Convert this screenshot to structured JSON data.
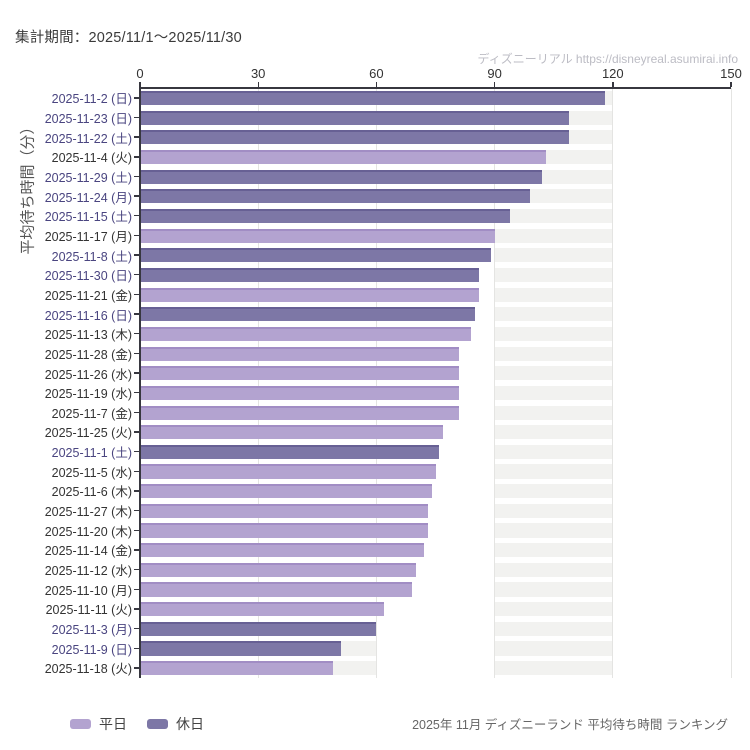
{
  "header": {
    "title": "集計期間：2025/11/1～2025/11/30",
    "watermark": "ディズニーリアル https://disneyreal.asumirai.info"
  },
  "footer": {
    "caption": "2025年 11月 ディズニーランド 平均待ち時間 ランキング"
  },
  "colors": {
    "bar_weekday": "#b3a3d0",
    "bar_weekday_edge": "#a18dc4",
    "bar_holiday": "#7d77a6",
    "bar_holiday_edge": "#676094",
    "label_weekday": "#333333",
    "label_holiday": "#4a4580",
    "stripe": "#f2f2f0",
    "gridline": "#e4e4e2",
    "axis": "#37373f"
  },
  "chart_data": {
    "type": "bar",
    "orientation": "horizontal",
    "title": "2025年 11月 ディズニーランド 平均待ち時間 ランキング",
    "ylabel": "平均待ち時間（分）",
    "xlabel": "",
    "xlim": [
      0,
      150
    ],
    "xticks": [
      0,
      30,
      60,
      90,
      120,
      150
    ],
    "grid": true,
    "legend_position": "bottom-left",
    "legend": [
      {
        "label": "平日",
        "color": "#b3a3d0"
      },
      {
        "label": "休日",
        "color": "#7d77a6"
      }
    ],
    "rows": [
      {
        "label": "2025-11-2 (日)",
        "value": 118,
        "series": "休日"
      },
      {
        "label": "2025-11-23 (日)",
        "value": 109,
        "series": "休日"
      },
      {
        "label": "2025-11-22 (土)",
        "value": 109,
        "series": "休日"
      },
      {
        "label": "2025-11-4 (火)",
        "value": 103,
        "series": "平日"
      },
      {
        "label": "2025-11-29 (土)",
        "value": 102,
        "series": "休日"
      },
      {
        "label": "2025-11-24 (月)",
        "value": 99,
        "series": "休日"
      },
      {
        "label": "2025-11-15 (土)",
        "value": 94,
        "series": "休日"
      },
      {
        "label": "2025-11-17 (月)",
        "value": 90,
        "series": "平日"
      },
      {
        "label": "2025-11-8 (土)",
        "value": 89,
        "series": "休日"
      },
      {
        "label": "2025-11-30 (日)",
        "value": 86,
        "series": "休日"
      },
      {
        "label": "2025-11-21 (金)",
        "value": 86,
        "series": "平日"
      },
      {
        "label": "2025-11-16 (日)",
        "value": 85,
        "series": "休日"
      },
      {
        "label": "2025-11-13 (木)",
        "value": 84,
        "series": "平日"
      },
      {
        "label": "2025-11-28 (金)",
        "value": 81,
        "series": "平日"
      },
      {
        "label": "2025-11-26 (水)",
        "value": 81,
        "series": "平日"
      },
      {
        "label": "2025-11-19 (水)",
        "value": 81,
        "series": "平日"
      },
      {
        "label": "2025-11-7 (金)",
        "value": 81,
        "series": "平日"
      },
      {
        "label": "2025-11-25 (火)",
        "value": 77,
        "series": "平日"
      },
      {
        "label": "2025-11-1 (土)",
        "value": 76,
        "series": "休日"
      },
      {
        "label": "2025-11-5 (水)",
        "value": 75,
        "series": "平日"
      },
      {
        "label": "2025-11-6 (木)",
        "value": 74,
        "series": "平日"
      },
      {
        "label": "2025-11-27 (木)",
        "value": 73,
        "series": "平日"
      },
      {
        "label": "2025-11-20 (木)",
        "value": 73,
        "series": "平日"
      },
      {
        "label": "2025-11-14 (金)",
        "value": 72,
        "series": "平日"
      },
      {
        "label": "2025-11-12 (水)",
        "value": 70,
        "series": "平日"
      },
      {
        "label": "2025-11-10 (月)",
        "value": 69,
        "series": "平日"
      },
      {
        "label": "2025-11-11 (火)",
        "value": 62,
        "series": "平日"
      },
      {
        "label": "2025-11-3 (月)",
        "value": 60,
        "series": "休日"
      },
      {
        "label": "2025-11-9 (日)",
        "value": 51,
        "series": "休日"
      },
      {
        "label": "2025-11-18 (火)",
        "value": 49,
        "series": "平日"
      }
    ]
  }
}
